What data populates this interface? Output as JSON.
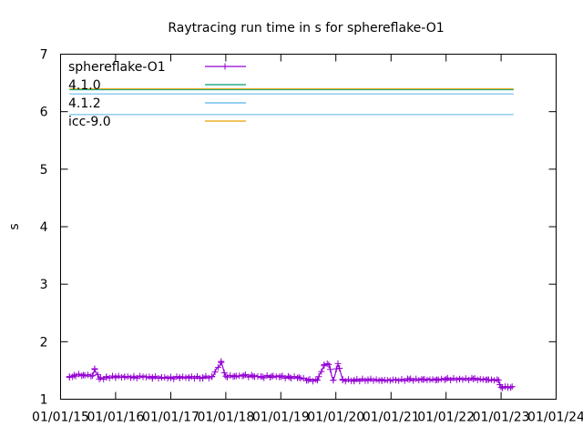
{
  "chart_data": {
    "type": "line",
    "title": "Raytracing run time in s for sphereflake-O1",
    "xlabel": "",
    "ylabel": "s",
    "ylim": [
      1,
      7
    ],
    "xlim": [
      "2015-01-01",
      "2024-01-01"
    ],
    "x_ticks": [
      "01/01/15",
      "01/01/16",
      "01/01/17",
      "01/01/18",
      "01/01/19",
      "01/01/20",
      "01/01/21",
      "01/01/22",
      "01/01/23",
      "01/01/24"
    ],
    "y_ticks": [
      "1",
      "2",
      "3",
      "4",
      "5",
      "6",
      "7"
    ],
    "grid": false,
    "legend_position": "top-left",
    "series": [
      {
        "name": "sphereflake-O1",
        "color": "#9400d3",
        "marker": "plus",
        "points": [
          [
            "2015-03-01",
            1.38
          ],
          [
            "2015-04-01",
            1.42
          ],
          [
            "2015-06-01",
            1.42
          ],
          [
            "2015-08-01",
            1.41
          ],
          [
            "2015-08-15",
            1.53
          ],
          [
            "2015-09-15",
            1.35
          ],
          [
            "2015-11-01",
            1.38
          ],
          [
            "2016-01-01",
            1.39
          ],
          [
            "2016-03-01",
            1.39
          ],
          [
            "2016-05-01",
            1.38
          ],
          [
            "2016-07-01",
            1.39
          ],
          [
            "2016-09-01",
            1.38
          ],
          [
            "2016-11-01",
            1.38
          ],
          [
            "2017-01-01",
            1.37
          ],
          [
            "2017-03-01",
            1.38
          ],
          [
            "2017-05-01",
            1.38
          ],
          [
            "2017-08-01",
            1.38
          ],
          [
            "2017-10-01",
            1.39
          ],
          [
            "2017-12-01",
            1.64
          ],
          [
            "2018-01-01",
            1.4
          ],
          [
            "2018-03-01",
            1.4
          ],
          [
            "2018-05-01",
            1.41
          ],
          [
            "2018-07-01",
            1.4
          ],
          [
            "2018-09-01",
            1.39
          ],
          [
            "2018-11-01",
            1.4
          ],
          [
            "2019-01-01",
            1.39
          ],
          [
            "2019-03-01",
            1.38
          ],
          [
            "2019-05-01",
            1.38
          ],
          [
            "2019-07-01",
            1.33
          ],
          [
            "2019-09-01",
            1.33
          ],
          [
            "2019-10-15",
            1.6
          ],
          [
            "2019-11-15",
            1.6
          ],
          [
            "2019-12-15",
            1.33
          ],
          [
            "2020-01-15",
            1.62
          ],
          [
            "2020-02-15",
            1.33
          ],
          [
            "2020-05-01",
            1.33
          ],
          [
            "2020-08-01",
            1.34
          ],
          [
            "2020-11-01",
            1.33
          ],
          [
            "2021-02-01",
            1.33
          ],
          [
            "2021-05-01",
            1.34
          ],
          [
            "2021-08-01",
            1.34
          ],
          [
            "2021-11-01",
            1.34
          ],
          [
            "2022-01-01",
            1.35
          ],
          [
            "2022-04-01",
            1.35
          ],
          [
            "2022-07-01",
            1.35
          ],
          [
            "2022-10-01",
            1.34
          ],
          [
            "2022-12-15",
            1.33
          ],
          [
            "2023-01-01",
            1.21
          ],
          [
            "2023-02-15",
            1.2
          ],
          [
            "2023-03-15",
            1.22
          ]
        ]
      },
      {
        "name": "4.1.0",
        "color": "#009e73",
        "marker": "line",
        "y": 6.38
      },
      {
        "name": "4.1.2",
        "color": "#56b4e9",
        "marker": "line",
        "y_segments": [
          6.31,
          5.95
        ]
      },
      {
        "name": "icc-9.0",
        "color": "#e69f00",
        "marker": "line",
        "y": 6.4
      }
    ]
  }
}
